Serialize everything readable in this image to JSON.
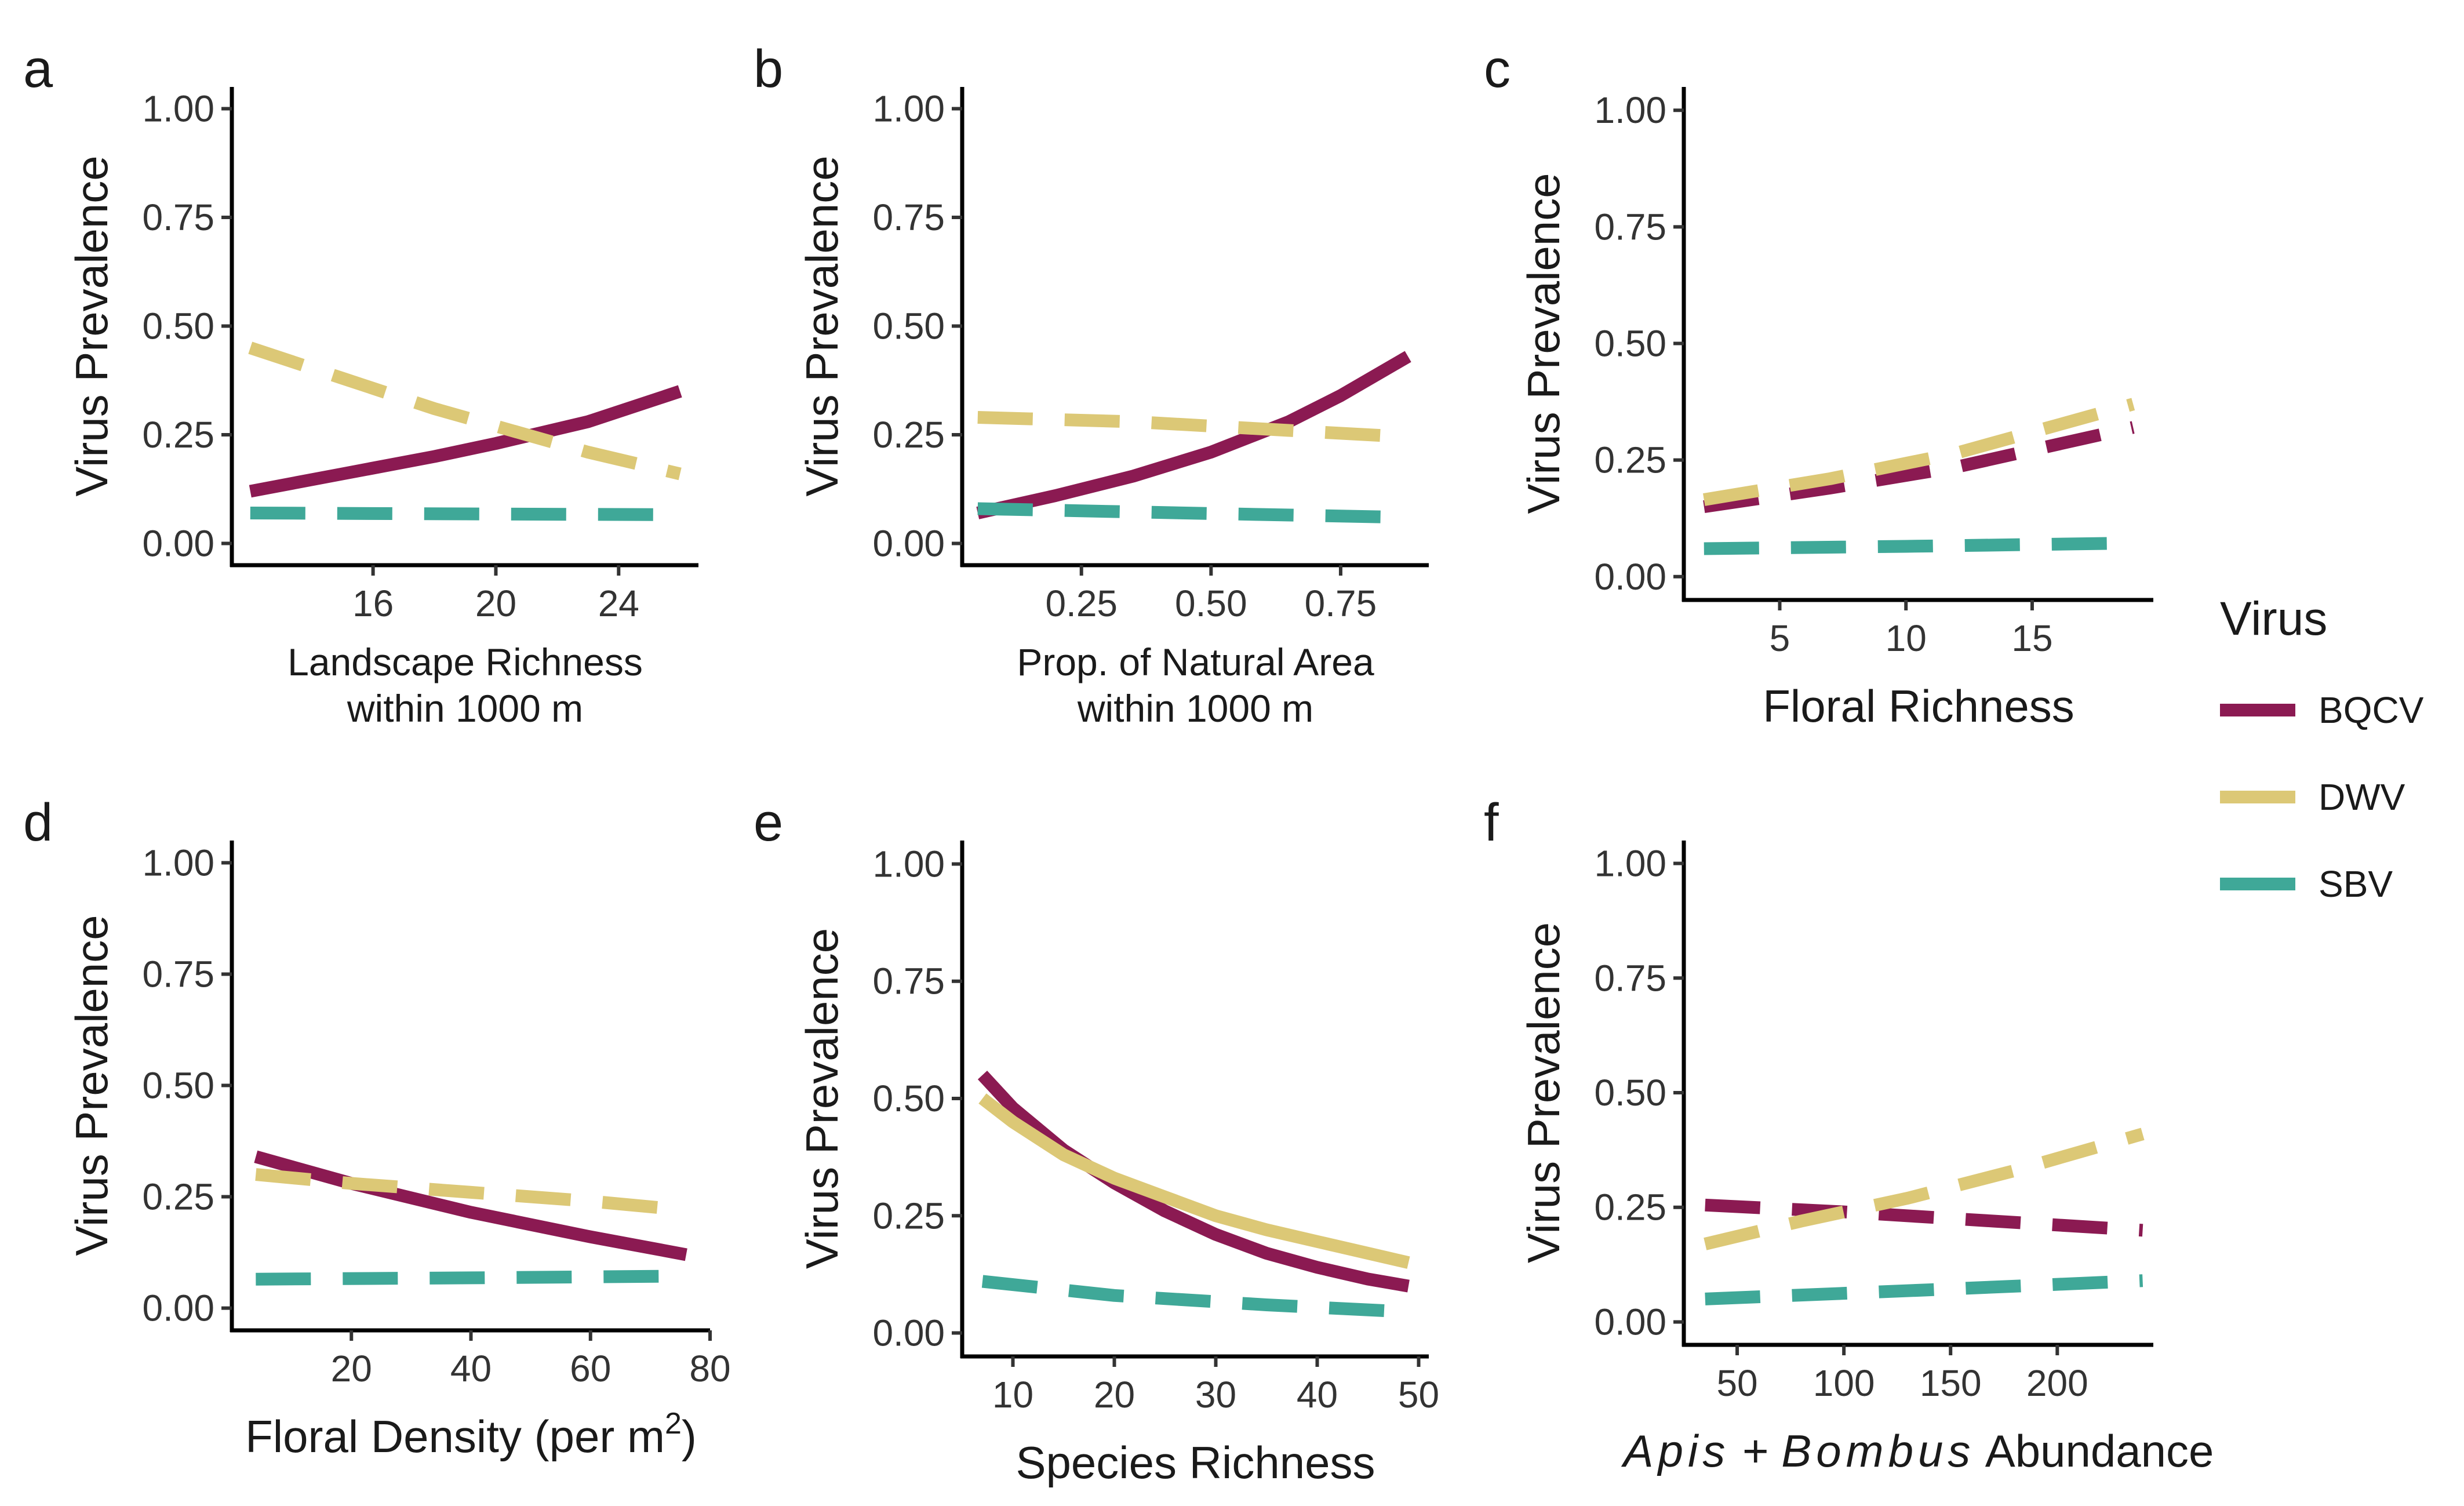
{
  "legend": {
    "title": "Virus",
    "items": [
      {
        "name": "BQCV",
        "color": "#8b1a52"
      },
      {
        "name": "DWV",
        "color": "#dcc876"
      },
      {
        "name": "SBV",
        "color": "#3fa898"
      }
    ]
  },
  "chart_data": [
    {
      "panel": "a",
      "type": "line",
      "xlabel": [
        "Landscape Richness",
        "within 1000 m"
      ],
      "ylabel": "Virus Prevalence",
      "xlim": [
        11.4,
        26.6
      ],
      "ylim": [
        -0.05,
        1.05
      ],
      "xticks": [
        16,
        20,
        24
      ],
      "xtick_labels": [
        "16",
        "20",
        "24"
      ],
      "yticks": [
        0,
        0.25,
        0.5,
        0.75,
        1.0
      ],
      "ytick_labels": [
        "0.00",
        "0.25",
        "0.50",
        "0.75",
        "1.00"
      ],
      "series": [
        {
          "name": "BQCV",
          "style": "solid",
          "x": [
            12,
            15,
            18,
            20,
            23,
            26
          ],
          "y": [
            0.12,
            0.16,
            0.2,
            0.23,
            0.28,
            0.35
          ]
        },
        {
          "name": "DWV",
          "style": "dashed",
          "x": [
            12,
            15,
            18,
            20,
            23,
            26
          ],
          "y": [
            0.45,
            0.38,
            0.31,
            0.27,
            0.21,
            0.16
          ]
        },
        {
          "name": "SBV",
          "style": "dashed",
          "x": [
            12,
            19,
            26
          ],
          "y": [
            0.07,
            0.068,
            0.066
          ]
        }
      ]
    },
    {
      "panel": "b",
      "type": "line",
      "xlabel": [
        "Prop. of Natural Area",
        "within 1000 m"
      ],
      "ylabel": "Virus Prevalence",
      "xlim": [
        0.02,
        0.92
      ],
      "ylim": [
        -0.05,
        1.05
      ],
      "xticks": [
        0.25,
        0.5,
        0.75
      ],
      "xtick_labels": [
        "0.25",
        "0.50",
        "0.75"
      ],
      "yticks": [
        0,
        0.25,
        0.5,
        0.75,
        1.0
      ],
      "ytick_labels": [
        "0.00",
        "0.25",
        "0.50",
        "0.75",
        "1.00"
      ],
      "series": [
        {
          "name": "BQCV",
          "style": "solid",
          "x": [
            0.05,
            0.2,
            0.35,
            0.5,
            0.65,
            0.75,
            0.88
          ],
          "y": [
            0.07,
            0.11,
            0.155,
            0.21,
            0.28,
            0.34,
            0.43
          ]
        },
        {
          "name": "DWV",
          "style": "dashed",
          "x": [
            0.05,
            0.35,
            0.65,
            0.88
          ],
          "y": [
            0.29,
            0.28,
            0.26,
            0.245
          ]
        },
        {
          "name": "SBV",
          "style": "dashed",
          "x": [
            0.05,
            0.45,
            0.88
          ],
          "y": [
            0.08,
            0.07,
            0.06
          ]
        }
      ]
    },
    {
      "panel": "c",
      "type": "line",
      "xlabel": [
        "Floral Richness"
      ],
      "ylabel": "Virus Prevalence",
      "xlim": [
        1.2,
        19.8
      ],
      "ylim": [
        -0.05,
        1.05
      ],
      "xticks": [
        5,
        10,
        15
      ],
      "xtick_labels": [
        "5",
        "10",
        "15"
      ],
      "yticks": [
        0,
        0.25,
        0.5,
        0.75,
        1.0
      ],
      "ytick_labels": [
        "0.00",
        "0.25",
        "0.50",
        "0.75",
        "1.00"
      ],
      "series": [
        {
          "name": "BQCV",
          "style": "dashed",
          "x": [
            2,
            7,
            12,
            19
          ],
          "y": [
            0.15,
            0.19,
            0.235,
            0.32
          ]
        },
        {
          "name": "DWV",
          "style": "dashed",
          "x": [
            2,
            7,
            12,
            19
          ],
          "y": [
            0.165,
            0.21,
            0.265,
            0.37
          ]
        },
        {
          "name": "SBV",
          "style": "dashed",
          "x": [
            2,
            10,
            19
          ],
          "y": [
            0.06,
            0.065,
            0.072
          ]
        }
      ]
    },
    {
      "panel": "d",
      "type": "line",
      "xlabel": [
        "Floral Density (per m²)"
      ],
      "ylabel": "Virus Prevalence",
      "xlim": [
        0,
        80
      ],
      "ylim": [
        -0.05,
        1.05
      ],
      "xticks": [
        20,
        40,
        60,
        80
      ],
      "xtick_labels": [
        "20",
        "40",
        "60",
        "80"
      ],
      "yticks": [
        0,
        0.25,
        0.5,
        0.75,
        1.0
      ],
      "ytick_labels": [
        "0.00",
        "0.25",
        "0.50",
        "0.75",
        "1.00"
      ],
      "series": [
        {
          "name": "BQCV",
          "style": "solid",
          "x": [
            4,
            20,
            40,
            60,
            76
          ],
          "y": [
            0.34,
            0.28,
            0.215,
            0.16,
            0.12
          ]
        },
        {
          "name": "DWV",
          "style": "dashed",
          "x": [
            4,
            20,
            40,
            60,
            76
          ],
          "y": [
            0.3,
            0.28,
            0.26,
            0.24,
            0.22
          ]
        },
        {
          "name": "SBV",
          "style": "dashed",
          "x": [
            4,
            40,
            76
          ],
          "y": [
            0.065,
            0.068,
            0.072
          ]
        }
      ]
    },
    {
      "panel": "e",
      "type": "line",
      "xlabel": [
        "Species Richness"
      ],
      "ylabel": "Virus Prevalence",
      "xlim": [
        5,
        51
      ],
      "ylim": [
        -0.05,
        1.05
      ],
      "xticks": [
        10,
        20,
        30,
        40,
        50
      ],
      "xtick_labels": [
        "10",
        "20",
        "30",
        "40",
        "50"
      ],
      "yticks": [
        0,
        0.25,
        0.5,
        0.75,
        1.0
      ],
      "ytick_labels": [
        "0.00",
        "0.25",
        "0.50",
        "0.75",
        "1.00"
      ],
      "series": [
        {
          "name": "BQCV",
          "style": "solid",
          "x": [
            7,
            10,
            15,
            20,
            25,
            30,
            35,
            40,
            45,
            49
          ],
          "y": [
            0.55,
            0.48,
            0.39,
            0.32,
            0.26,
            0.21,
            0.17,
            0.14,
            0.115,
            0.1
          ]
        },
        {
          "name": "DWV",
          "style": "solid",
          "x": [
            7,
            10,
            15,
            20,
            25,
            30,
            35,
            40,
            45,
            49
          ],
          "y": [
            0.5,
            0.45,
            0.38,
            0.33,
            0.29,
            0.25,
            0.22,
            0.195,
            0.17,
            0.15
          ]
        },
        {
          "name": "SBV",
          "style": "dashed",
          "x": [
            7,
            20,
            35,
            49
          ],
          "y": [
            0.11,
            0.08,
            0.06,
            0.045
          ]
        }
      ]
    },
    {
      "panel": "f",
      "type": "line",
      "xlabel": [
        "Apis + Bombus Abundance"
      ],
      "ylabel": "Virus Prevalence",
      "xlim": [
        25,
        245
      ],
      "ylim": [
        -0.05,
        1.05
      ],
      "xticks": [
        50,
        100,
        150,
        200
      ],
      "xtick_labels": [
        "50",
        "100",
        "150",
        "200"
      ],
      "yticks": [
        0,
        0.25,
        0.5,
        0.75,
        1.0
      ],
      "ytick_labels": [
        "0.00",
        "0.25",
        "0.50",
        "0.75",
        "1.00"
      ],
      "series": [
        {
          "name": "BQCV",
          "style": "dashed",
          "x": [
            35,
            100,
            170,
            240
          ],
          "y": [
            0.255,
            0.24,
            0.22,
            0.2
          ]
        },
        {
          "name": "DWV",
          "style": "dashed",
          "x": [
            35,
            80,
            130,
            180,
            240
          ],
          "y": [
            0.17,
            0.22,
            0.27,
            0.33,
            0.41
          ]
        },
        {
          "name": "SBV",
          "style": "dashed",
          "x": [
            35,
            140,
            240
          ],
          "y": [
            0.05,
            0.07,
            0.09
          ]
        }
      ]
    }
  ]
}
